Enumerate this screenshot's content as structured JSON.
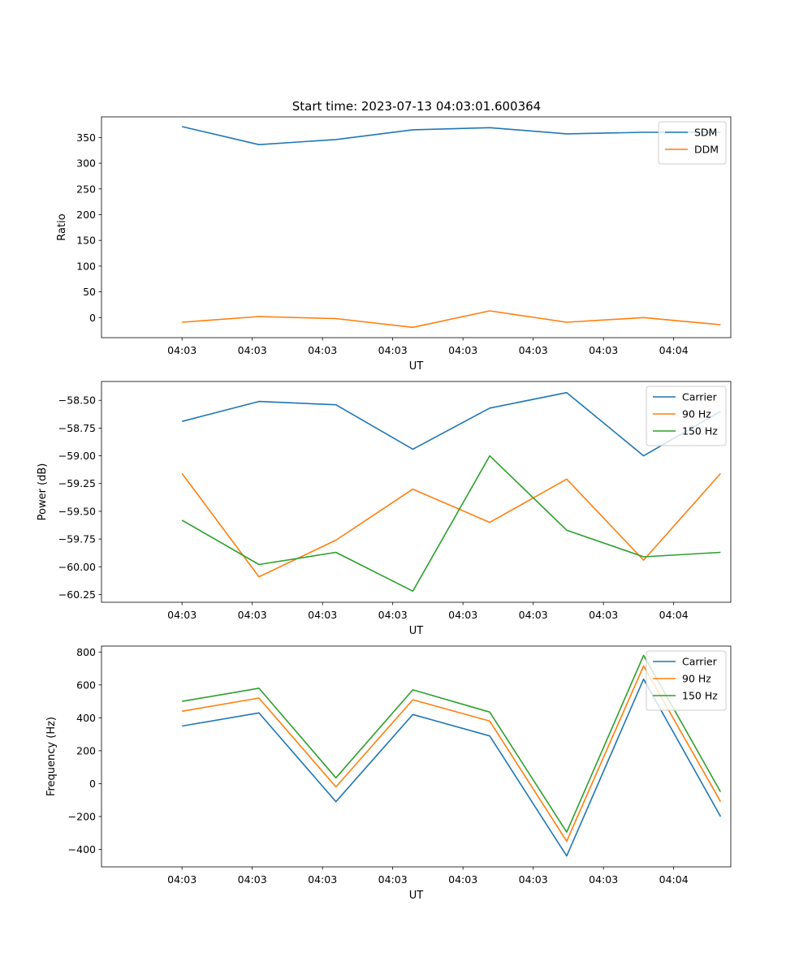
{
  "figure_title": "Start time: 2023-07-13 04:03:01.600364",
  "colors": {
    "series1": "#1f77b4",
    "series2": "#ff7f0e",
    "series3": "#2ca02c",
    "axis": "#000000",
    "legend_border": "#cccccc"
  },
  "chart_data": [
    {
      "type": "line",
      "title": "Start time: 2023-07-13 04:03:01.600364",
      "xlabel": "UT",
      "ylabel": "Ratio",
      "x_tick_labels": [
        "04:03",
        "04:03",
        "04:03",
        "04:03",
        "04:03",
        "04:03",
        "04:03"
      ],
      "x_last_tick_label": "04:04",
      "x": [
        1,
        2,
        3,
        4,
        5,
        6,
        7,
        8
      ],
      "xlim": [
        -0.72,
        8.72
      ],
      "ylim": [
        -39,
        390
      ],
      "yticks": [
        0,
        50,
        100,
        150,
        200,
        250,
        300,
        350
      ],
      "ytick_labels": [
        "0",
        "50",
        "100",
        "150",
        "200",
        "250",
        "300",
        "350"
      ],
      "legend_location": "upper right",
      "series": [
        {
          "name": "SDM",
          "values": [
            371,
            336,
            346,
            365,
            369,
            357,
            360,
            360
          ]
        },
        {
          "name": "DDM",
          "values": [
            -9,
            2,
            -2,
            -19,
            13,
            -9,
            0,
            -14
          ]
        }
      ]
    },
    {
      "type": "line",
      "title": "",
      "xlabel": "UT",
      "ylabel": "Power (dB)",
      "x_tick_labels": [
        "04:03",
        "04:03",
        "04:03",
        "04:03",
        "04:03",
        "04:03",
        "04:03"
      ],
      "x_last_tick_label": "04:04",
      "x": [
        1,
        2,
        3,
        4,
        5,
        6,
        7,
        8
      ],
      "xlim": [
        -0.72,
        8.72
      ],
      "ylim": [
        -60.32,
        -58.33
      ],
      "yticks": [
        -60.25,
        -60.0,
        -59.75,
        -59.5,
        -59.25,
        -59.0,
        -58.75,
        -58.5
      ],
      "ytick_labels": [
        "−60.25",
        "−60.00",
        "−59.75",
        "−59.50",
        "−59.25",
        "−59.00",
        "−58.75",
        "−58.50"
      ],
      "legend_location": "upper right",
      "series": [
        {
          "name": "Carrier",
          "values": [
            -58.69,
            -58.51,
            -58.54,
            -58.94,
            -58.57,
            -58.43,
            -59.0,
            -58.6
          ]
        },
        {
          "name": "90 Hz",
          "values": [
            -59.16,
            -60.09,
            -59.76,
            -59.3,
            -59.6,
            -59.21,
            -59.94,
            -59.16
          ]
        },
        {
          "name": "150 Hz",
          "values": [
            -59.58,
            -59.98,
            -59.87,
            -60.22,
            -59.0,
            -59.67,
            -59.91,
            -59.87
          ]
        }
      ]
    },
    {
      "type": "line",
      "title": "",
      "xlabel": "UT",
      "ylabel": "Frequency (Hz)",
      "x_tick_labels": [
        "04:03",
        "04:03",
        "04:03",
        "04:03",
        "04:03",
        "04:03",
        "04:03"
      ],
      "x_last_tick_label": "04:04",
      "x": [
        1,
        2,
        3,
        4,
        5,
        6,
        7,
        8
      ],
      "xlim": [
        -0.72,
        8.72
      ],
      "ylim": [
        -506,
        836
      ],
      "yticks": [
        -400,
        -200,
        0,
        200,
        400,
        600,
        800
      ],
      "ytick_labels": [
        "−400",
        "−200",
        "0",
        "200",
        "400",
        "600",
        "800"
      ],
      "legend_location": "upper right",
      "series": [
        {
          "name": "Carrier",
          "values": [
            350,
            430,
            -110,
            420,
            290,
            -440,
            635,
            -200
          ]
        },
        {
          "name": "90 Hz",
          "values": [
            440,
            520,
            -20,
            510,
            380,
            -350,
            715,
            -110
          ]
        },
        {
          "name": "150 Hz",
          "values": [
            500,
            580,
            35,
            570,
            435,
            -295,
            780,
            -50
          ]
        }
      ]
    }
  ]
}
